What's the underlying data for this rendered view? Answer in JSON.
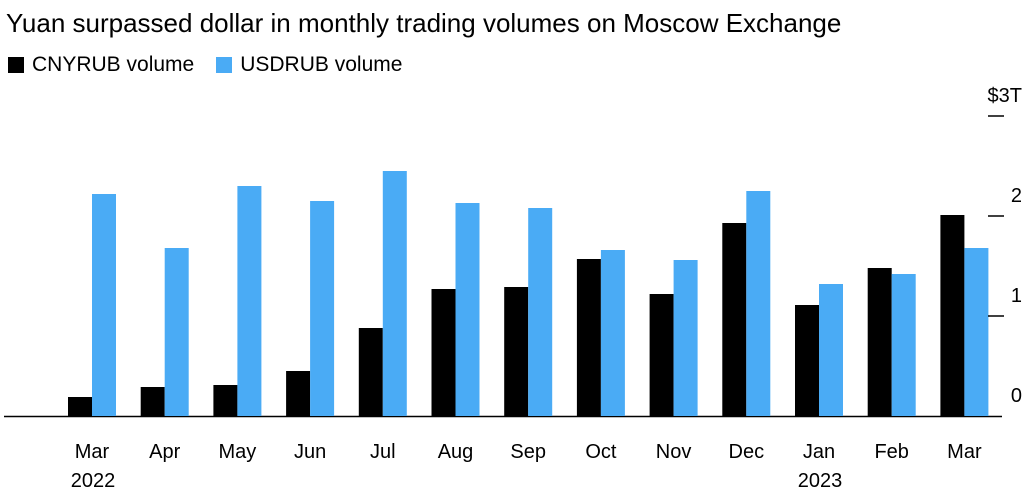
{
  "title": "Yuan surpassed dollar in monthly trading volumes on Moscow Exchange",
  "legend": {
    "items": [
      {
        "label": "CNYRUB volume",
        "color": "#000000"
      },
      {
        "label": "USDRUB volume",
        "color": "#4aabf5"
      }
    ]
  },
  "chart_data": {
    "type": "bar",
    "title": "Yuan surpassed dollar in monthly trading volumes on Moscow Exchange",
    "categories": [
      "Mar",
      "Apr",
      "May",
      "Jun",
      "Jul",
      "Aug",
      "Sep",
      "Oct",
      "Nov",
      "Dec",
      "Jan",
      "Feb",
      "Mar"
    ],
    "year_labels": [
      "2022",
      "",
      "",
      "",
      "",
      "",
      "",
      "",
      "",
      "",
      "2023",
      "",
      ""
    ],
    "series": [
      {
        "name": "CNYRUB volume",
        "color": "#000000",
        "values": [
          0.19,
          0.29,
          0.31,
          0.45,
          0.88,
          1.27,
          1.29,
          1.57,
          1.22,
          1.93,
          1.11,
          1.48,
          2.01
        ]
      },
      {
        "name": "USDRUB volume",
        "color": "#4aabf5",
        "values": [
          2.22,
          1.68,
          2.3,
          2.15,
          2.45,
          2.13,
          2.08,
          1.66,
          1.56,
          2.25,
          1.32,
          1.42,
          1.68
        ]
      }
    ],
    "y_ticks": [
      {
        "value": 0,
        "label": "0"
      },
      {
        "value": 1,
        "label": "1"
      },
      {
        "value": 2,
        "label": "2"
      },
      {
        "value": 3,
        "label": "$3T"
      }
    ],
    "ylim": [
      0,
      3
    ],
    "xlabel": "",
    "ylabel": "",
    "y_axis_side": "right",
    "grid": false,
    "legend_position": "top-left"
  }
}
